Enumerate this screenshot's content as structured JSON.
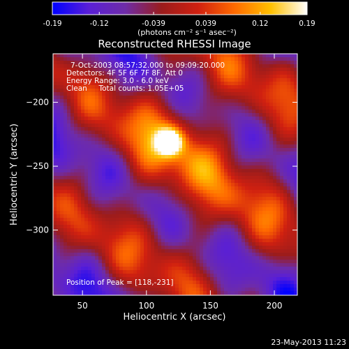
{
  "chart_data": {
    "type": "heatmap",
    "title": "Reconstructed RHESSI Image",
    "xlabel": "Heliocentric X (arcsec)",
    "ylabel": "Heliocentric Y (arcsec)",
    "xlim": [
      27,
      218
    ],
    "ylim": [
      -351,
      -162
    ],
    "x_ticks": [
      50,
      100,
      150,
      200
    ],
    "y_ticks": [
      -200,
      -250,
      -300
    ],
    "colorbar": {
      "range": [
        -0.19,
        0.19
      ],
      "tick_values": [
        -0.19,
        -0.12,
        -0.039,
        0.039,
        0.12,
        0.19
      ],
      "tick_labels": [
        "-0.19",
        "-0.12",
        "-0.039",
        "0.039",
        "0.12",
        "0.19"
      ],
      "unit_label": "(photons cm⁻² s⁻¹ asec⁻²)"
    },
    "annotations": {
      "time_range": "7-Oct-2003 08:57:32.000 to 09:09:20.000",
      "detectors": "Detectors: 4F 5F 6F 7F 8F, Att 0",
      "energy": "Energy Range: 3.0 - 6.0 keV",
      "clean": "Clean     Total counts: 1.05E+05",
      "peak": "Position of Peak = [118,-231]"
    },
    "peak": {
      "x": 118,
      "y": -231,
      "value": 0.19
    },
    "colormap_stops": [
      "#0000ff",
      "#5a1fd6",
      "#6e2ca8",
      "#9a1c1c",
      "#d02010",
      "#ff6a00",
      "#ffc000",
      "#ffffff"
    ]
  },
  "footer": {
    "timestamp": "23-May-2013 11:23"
  }
}
